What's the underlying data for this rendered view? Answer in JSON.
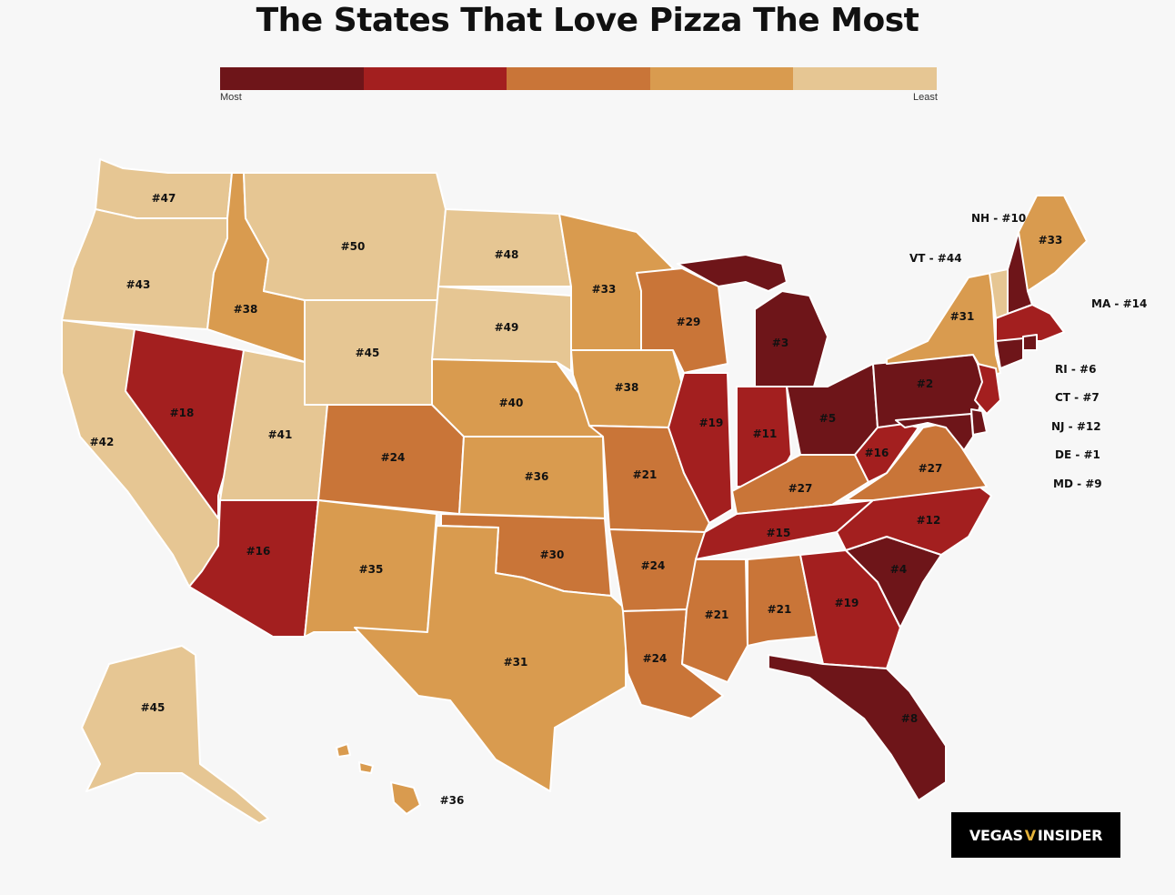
{
  "title": "The States That Love Pizza The Most",
  "legend": {
    "min_label": "Most",
    "max_label": "Least",
    "colors": [
      "#6e1519",
      "#a31f1f",
      "#c97538",
      "#d99b4f",
      "#e6c693"
    ]
  },
  "states": [
    {
      "code": "WA",
      "rank": "#47",
      "tier": 4
    },
    {
      "code": "OR",
      "rank": "#43",
      "tier": 4
    },
    {
      "code": "CA",
      "rank": "#42",
      "tier": 4
    },
    {
      "code": "ID",
      "rank": "#38",
      "tier": 3
    },
    {
      "code": "NV",
      "rank": "#18",
      "tier": 1
    },
    {
      "code": "MT",
      "rank": "#50",
      "tier": 4
    },
    {
      "code": "WY",
      "rank": "#45",
      "tier": 4
    },
    {
      "code": "UT",
      "rank": "#41",
      "tier": 4
    },
    {
      "code": "AZ",
      "rank": "#16",
      "tier": 1
    },
    {
      "code": "CO",
      "rank": "#24",
      "tier": 2
    },
    {
      "code": "NM",
      "rank": "#35",
      "tier": 3
    },
    {
      "code": "ND",
      "rank": "#48",
      "tier": 4
    },
    {
      "code": "SD",
      "rank": "#49",
      "tier": 4
    },
    {
      "code": "NE",
      "rank": "#40",
      "tier": 3
    },
    {
      "code": "KS",
      "rank": "#36",
      "tier": 3
    },
    {
      "code": "OK",
      "rank": "#30",
      "tier": 2
    },
    {
      "code": "TX",
      "rank": "#31",
      "tier": 3
    },
    {
      "code": "MN",
      "rank": "#33",
      "tier": 3
    },
    {
      "code": "IA",
      "rank": "#38",
      "tier": 3
    },
    {
      "code": "MO",
      "rank": "#21",
      "tier": 2
    },
    {
      "code": "AR",
      "rank": "#24",
      "tier": 2
    },
    {
      "code": "LA",
      "rank": "#24",
      "tier": 2
    },
    {
      "code": "WI",
      "rank": "#29",
      "tier": 2
    },
    {
      "code": "IL",
      "rank": "#19",
      "tier": 1
    },
    {
      "code": "MI",
      "rank": "#3",
      "tier": 0
    },
    {
      "code": "IN",
      "rank": "#11",
      "tier": 1
    },
    {
      "code": "OH",
      "rank": "#5",
      "tier": 0
    },
    {
      "code": "KY",
      "rank": "#27",
      "tier": 2
    },
    {
      "code": "TN",
      "rank": "#15",
      "tier": 1
    },
    {
      "code": "MS",
      "rank": "#21",
      "tier": 2
    },
    {
      "code": "AL",
      "rank": "#21",
      "tier": 2
    },
    {
      "code": "GA",
      "rank": "#19",
      "tier": 1
    },
    {
      "code": "FL",
      "rank": "#8",
      "tier": 0
    },
    {
      "code": "SC",
      "rank": "#4",
      "tier": 0
    },
    {
      "code": "NC",
      "rank": "#12",
      "tier": 1
    },
    {
      "code": "VA",
      "rank": "#27",
      "tier": 2
    },
    {
      "code": "WV",
      "rank": "#16",
      "tier": 1
    },
    {
      "code": "PA",
      "rank": "#2",
      "tier": 0
    },
    {
      "code": "NY",
      "rank": "#31",
      "tier": 3
    },
    {
      "code": "ME",
      "rank": "#33",
      "tier": 3
    },
    {
      "code": "AK",
      "rank": "#45",
      "tier": 4
    },
    {
      "code": "HI",
      "rank": "#36",
      "tier": 3
    },
    {
      "code": "VT",
      "rank": "",
      "tier": 4
    },
    {
      "code": "NH",
      "rank": "",
      "tier": 0
    },
    {
      "code": "MA",
      "rank": "",
      "tier": 1
    },
    {
      "code": "RI",
      "rank": "",
      "tier": 0
    },
    {
      "code": "CT",
      "rank": "",
      "tier": 0
    },
    {
      "code": "NJ",
      "rank": "",
      "tier": 1
    },
    {
      "code": "DE",
      "rank": "",
      "tier": 0
    },
    {
      "code": "MD",
      "rank": "",
      "tier": 0
    }
  ],
  "callouts": [
    {
      "code": "NH",
      "text": "NH - #10"
    },
    {
      "code": "VT",
      "text": "VT - #44"
    },
    {
      "code": "MA",
      "text": "MA - #14"
    },
    {
      "code": "RI",
      "text": "RI - #6"
    },
    {
      "code": "CT",
      "text": "CT - #7"
    },
    {
      "code": "NJ",
      "text": "NJ - #12"
    },
    {
      "code": "DE",
      "text": "DE - #1"
    },
    {
      "code": "MD",
      "text": "MD - #9"
    }
  ],
  "logo": {
    "left": "VEGAS",
    "mark": "V",
    "right": "INSIDER"
  }
}
